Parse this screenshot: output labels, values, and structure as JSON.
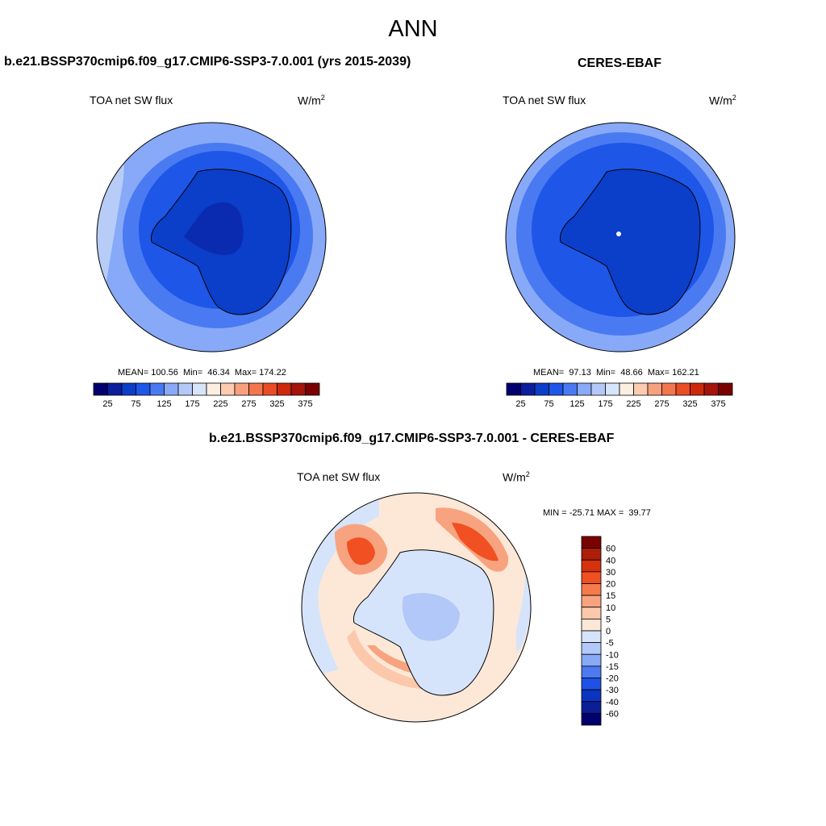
{
  "season": "ANN",
  "panels": {
    "model": {
      "title": "b.e21.BSSP370cmip6.f09_g17.CMIP6-SSP3-7.0.001 (yrs 2015-2039)",
      "variable": "TOA net SW flux",
      "units_base": "W/m",
      "units_exp": "2",
      "stats": "MEAN= 100.56  Min=  46.34  Max= 174.22"
    },
    "obs": {
      "title": "CERES-EBAF",
      "variable": "TOA net SW flux",
      "units_base": "W/m",
      "units_exp": "2",
      "stats": "MEAN=  97.13  Min=  48.66  Max= 162.21"
    },
    "diff": {
      "title": "b.e21.BSSP370cmip6.f09_g17.CMIP6-SSP3-7.0.001 - CERES-EBAF",
      "variable": "TOA net SW flux",
      "units_base": "W/m",
      "units_exp": "2",
      "stats": "MIN = -25.71 MAX =  39.77"
    }
  },
  "colorbars": {
    "absolute": {
      "labels": [
        "25",
        "75",
        "125",
        "175",
        "225",
        "275",
        "325",
        "375"
      ],
      "colors": [
        "#00006e",
        "#0a1e9e",
        "#0b3ec9",
        "#1e56e8",
        "#4a7af2",
        "#8aaaf8",
        "#b4c9f8",
        "#d7e5fb",
        "#fdeee2",
        "#fccbb0",
        "#f8a07e",
        "#f4764f",
        "#ea4c24",
        "#cc2a0b",
        "#a5140a",
        "#7a0000"
      ]
    },
    "difference": {
      "labels": [
        "60",
        "40",
        "30",
        "20",
        "15",
        "10",
        "5",
        "0",
        "-5",
        "-10",
        "-15",
        "-20",
        "-30",
        "-40",
        "-60"
      ],
      "colors": [
        "#7a0000",
        "#ae1d08",
        "#d6320d",
        "#f05022",
        "#f57a4c",
        "#f8a37f",
        "#fcc8ac",
        "#fde8d8",
        "#d6e4fb",
        "#b2c8f8",
        "#88a9f6",
        "#4d7af1",
        "#1e52e6",
        "#0b34c0",
        "#0a1e98",
        "#00006e"
      ]
    }
  }
}
